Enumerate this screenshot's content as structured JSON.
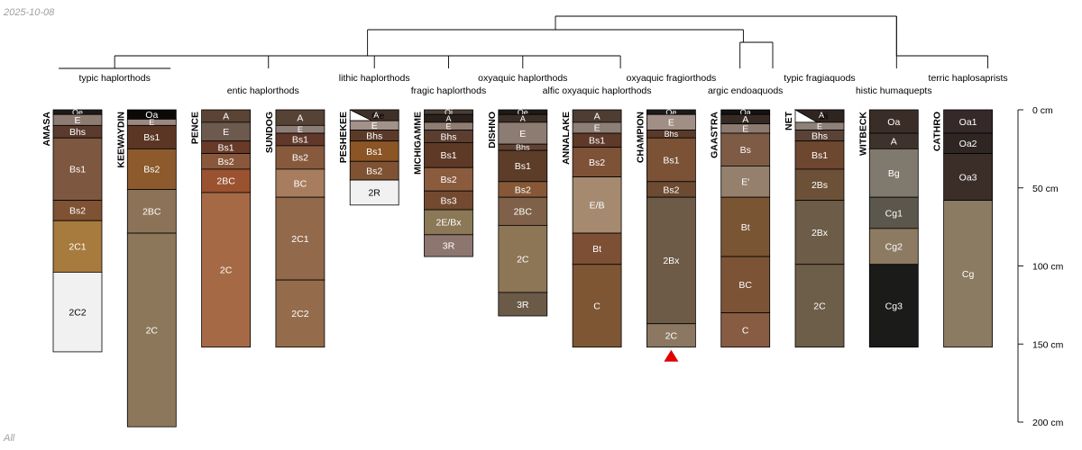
{
  "date": "2025-10-08",
  "footer": "All",
  "depth_axis": {
    "max": 200,
    "ticks": [
      {
        "value": 0,
        "label": "0 cm"
      },
      {
        "value": 50,
        "label": "50 cm"
      },
      {
        "value": 100,
        "label": "100 cm"
      },
      {
        "value": 150,
        "label": "150 cm"
      },
      {
        "value": 200,
        "label": "200 cm"
      }
    ]
  },
  "colors": {
    "line": "#000000",
    "marker": "#e00000"
  },
  "taxa": [
    {
      "name": "typic haplorthods",
      "members": [
        "AMASA",
        "KEEWAYDIN"
      ]
    },
    {
      "name": "entic haplorthods",
      "members": [
        "PENCE",
        "SUNDOG"
      ]
    },
    {
      "name": "lithic haplorthods",
      "members": [
        "PESHEKEE"
      ]
    },
    {
      "name": "fragic haplorthods",
      "members": [
        "MICHIGAMME"
      ]
    },
    {
      "name": "oxyaquic haplorthods",
      "members": [
        "DISHNO"
      ]
    },
    {
      "name": "alfic oxyaquic haplorthods",
      "members": [
        "ANNALAKE"
      ]
    },
    {
      "name": "oxyaquic fragiorthods",
      "members": [
        "CHAMPION"
      ]
    },
    {
      "name": "argic endoaquods",
      "members": [
        "GAASTRA"
      ]
    },
    {
      "name": "typic fragiaquods",
      "members": [
        "NET"
      ]
    },
    {
      "name": "histic humaquepts",
      "members": [
        "WITBECK"
      ]
    },
    {
      "name": "terric haplosaprists",
      "members": [
        "CATHRO"
      ]
    }
  ],
  "profiles": [
    {
      "name": "AMASA",
      "horizons": [
        {
          "name": "Oe",
          "top": 0,
          "bottom": 3,
          "color": "#1e1a18"
        },
        {
          "name": "E",
          "top": 3,
          "bottom": 10,
          "color": "#8e7b72"
        },
        {
          "name": "Bhs",
          "top": 10,
          "bottom": 18,
          "color": "#5a3b2d"
        },
        {
          "name": "Bs1",
          "top": 18,
          "bottom": 58,
          "color": "#7e5740"
        },
        {
          "name": "Bs2",
          "top": 58,
          "bottom": 71,
          "color": "#7e5233"
        },
        {
          "name": "2C1",
          "top": 71,
          "bottom": 104,
          "color": "#a77a3d"
        },
        {
          "name": "2C2",
          "top": 104,
          "bottom": 155,
          "color": "#f1f1f1"
        }
      ]
    },
    {
      "name": "KEEWAYDIN",
      "horizons": [
        {
          "name": "Oa",
          "top": 0,
          "bottom": 6,
          "color": "#0c0a08"
        },
        {
          "name": "E",
          "top": 6,
          "bottom": 10,
          "color": "#9c8880"
        },
        {
          "name": "Bs1",
          "top": 10,
          "bottom": 25,
          "color": "#5b3624"
        },
        {
          "name": "Bs2",
          "top": 25,
          "bottom": 51,
          "color": "#8c5a2c"
        },
        {
          "name": "2BC",
          "top": 51,
          "bottom": 79,
          "color": "#8c7358"
        },
        {
          "name": "2C",
          "top": 79,
          "bottom": 203,
          "color": "#8c775a"
        }
      ]
    },
    {
      "name": "PENCE",
      "horizons": [
        {
          "name": "A",
          "top": 0,
          "bottom": 8,
          "color": "#5b4335"
        },
        {
          "name": "E",
          "top": 8,
          "bottom": 20,
          "color": "#6d5a4e"
        },
        {
          "name": "Bs1",
          "top": 20,
          "bottom": 28,
          "color": "#683a27"
        },
        {
          "name": "Bs2",
          "top": 28,
          "bottom": 38,
          "color": "#88573c"
        },
        {
          "name": "2BC",
          "top": 38,
          "bottom": 53,
          "color": "#9a5230"
        },
        {
          "name": "2C",
          "top": 53,
          "bottom": 152,
          "color": "#a56a45"
        }
      ]
    },
    {
      "name": "SUNDOG",
      "horizons": [
        {
          "name": "A",
          "top": 0,
          "bottom": 10,
          "color": "#574236"
        },
        {
          "name": "E",
          "top": 10,
          "bottom": 15,
          "color": "#8c7e77"
        },
        {
          "name": "Bs1",
          "top": 15,
          "bottom": 23,
          "color": "#61392b"
        },
        {
          "name": "Bs2",
          "top": 23,
          "bottom": 38,
          "color": "#875a3e"
        },
        {
          "name": "BC",
          "top": 38,
          "bottom": 56,
          "color": "#a87d5f"
        },
        {
          "name": "2C1",
          "top": 56,
          "bottom": 109,
          "color": "#93694c"
        },
        {
          "name": "2C2",
          "top": 109,
          "bottom": 152,
          "color": "#946c4c"
        }
      ]
    },
    {
      "name": "PESHEKEE",
      "horizons": [
        {
          "name": "Oe",
          "top": 0,
          "bottom": 7,
          "color": "#ffffff",
          "pattern": "wedge"
        },
        {
          "name": "A",
          "top": 0,
          "bottom": 7,
          "color": "#3f3128",
          "label": false
        },
        {
          "name": "E",
          "top": 7,
          "bottom": 13,
          "color": "#a3928a"
        },
        {
          "name": "Bhs",
          "top": 13,
          "bottom": 20,
          "color": "#5c3a2a"
        },
        {
          "name": "Bs1",
          "top": 20,
          "bottom": 33,
          "color": "#8b5526"
        },
        {
          "name": "Bs2",
          "top": 33,
          "bottom": 45,
          "color": "#7e5233"
        },
        {
          "name": "2R",
          "top": 45,
          "bottom": 61,
          "color": "#f1f1f1"
        }
      ]
    },
    {
      "name": "MICHIGAMME",
      "horizons": [
        {
          "name": "Oi",
          "top": 0,
          "bottom": 3,
          "color": "#4a3e36"
        },
        {
          "name": "A",
          "top": 3,
          "bottom": 8,
          "color": "#2b211c"
        },
        {
          "name": "E",
          "top": 8,
          "bottom": 13,
          "color": "#8d7d73"
        },
        {
          "name": "Bhs",
          "top": 13,
          "bottom": 21,
          "color": "#5b3e30"
        },
        {
          "name": "Bs1",
          "top": 21,
          "bottom": 37,
          "color": "#5e3a26"
        },
        {
          "name": "Bs2",
          "top": 37,
          "bottom": 52,
          "color": "#8b5b3e"
        },
        {
          "name": "Bs3",
          "top": 52,
          "bottom": 64,
          "color": "#734a30"
        },
        {
          "name": "2E/Bx",
          "top": 64,
          "bottom": 80,
          "color": "#8a7856"
        },
        {
          "name": "3R",
          "top": 80,
          "bottom": 94,
          "color": "#8e7670"
        }
      ]
    },
    {
      "name": "DISHNO",
      "horizons": [
        {
          "name": "Oe",
          "top": 0,
          "bottom": 3,
          "color": "#1e1a18"
        },
        {
          "name": "A",
          "top": 3,
          "bottom": 8,
          "color": "#3b2e26"
        },
        {
          "name": "E",
          "top": 8,
          "bottom": 22,
          "color": "#8d7c72"
        },
        {
          "name": "Bhs",
          "top": 22,
          "bottom": 26,
          "color": "#604233"
        },
        {
          "name": "Bs1",
          "top": 26,
          "bottom": 46,
          "color": "#5d3d28"
        },
        {
          "name": "Bs2",
          "top": 46,
          "bottom": 56,
          "color": "#865837"
        },
        {
          "name": "2BC",
          "top": 56,
          "bottom": 74,
          "color": "#7e6148"
        },
        {
          "name": "2C",
          "top": 74,
          "bottom": 117,
          "color": "#8c7656"
        },
        {
          "name": "3R",
          "top": 117,
          "bottom": 132,
          "color": "#6b5a48"
        }
      ]
    },
    {
      "name": "ANNALAKE",
      "horizons": [
        {
          "name": "A",
          "top": 0,
          "bottom": 8,
          "color": "#4e3d33"
        },
        {
          "name": "E",
          "top": 8,
          "bottom": 15,
          "color": "#8d7e76"
        },
        {
          "name": "Bs1",
          "top": 15,
          "bottom": 24,
          "color": "#5f3a29"
        },
        {
          "name": "Bs2",
          "top": 24,
          "bottom": 43,
          "color": "#7e5237"
        },
        {
          "name": "E/B",
          "top": 43,
          "bottom": 79,
          "color": "#a58a70"
        },
        {
          "name": "Bt",
          "top": 79,
          "bottom": 99,
          "color": "#7d5035"
        },
        {
          "name": "C",
          "top": 99,
          "bottom": 152,
          "color": "#7e5634"
        }
      ]
    },
    {
      "name": "CHAMPION",
      "horizons": [
        {
          "name": "Oe",
          "top": 0,
          "bottom": 3,
          "color": "#1e1a18"
        },
        {
          "name": "E",
          "top": 3,
          "bottom": 13,
          "color": "#a18e84"
        },
        {
          "name": "Bhs",
          "top": 13,
          "bottom": 18,
          "color": "#5a3a2a"
        },
        {
          "name": "Bs1",
          "top": 18,
          "bottom": 46,
          "color": "#7b5236"
        },
        {
          "name": "Bs2",
          "top": 46,
          "bottom": 56,
          "color": "#6d4a32"
        },
        {
          "name": "2Bx",
          "top": 56,
          "bottom": 137,
          "color": "#6e5b47"
        },
        {
          "name": "2C",
          "top": 137,
          "bottom": 152,
          "color": "#8b7762"
        }
      ],
      "marker": true
    },
    {
      "name": "GAASTRA",
      "horizons": [
        {
          "name": "Oa",
          "top": 0,
          "bottom": 3,
          "color": "#151211"
        },
        {
          "name": "A",
          "top": 3,
          "bottom": 9,
          "color": "#362a24"
        },
        {
          "name": "E",
          "top": 9,
          "bottom": 15,
          "color": "#8c7a70"
        },
        {
          "name": "Bs",
          "top": 15,
          "bottom": 36,
          "color": "#7e5b45"
        },
        {
          "name": "E'",
          "top": 36,
          "bottom": 56,
          "color": "#94806c"
        },
        {
          "name": "Bt",
          "top": 56,
          "bottom": 94,
          "color": "#7a5534"
        },
        {
          "name": "BC",
          "top": 94,
          "bottom": 130,
          "color": "#7c5335"
        },
        {
          "name": "C",
          "top": 130,
          "bottom": 152,
          "color": "#885b43"
        }
      ]
    },
    {
      "name": "NET",
      "horizons": [
        {
          "name": "Oi",
          "top": 0,
          "bottom": 8,
          "color": "#ffffff",
          "pattern": "wedge"
        },
        {
          "name": "A",
          "top": 0,
          "bottom": 8,
          "color": "#2e2420",
          "label": false
        },
        {
          "name": "E",
          "top": 8,
          "bottom": 13,
          "color": "#8e8178"
        },
        {
          "name": "Bhs",
          "top": 13,
          "bottom": 20,
          "color": "#5a4236"
        },
        {
          "name": "Bs1",
          "top": 20,
          "bottom": 38,
          "color": "#6e4731"
        },
        {
          "name": "2Bs",
          "top": 38,
          "bottom": 58,
          "color": "#6c5138"
        },
        {
          "name": "2Bx",
          "top": 58,
          "bottom": 99,
          "color": "#6d5c47"
        },
        {
          "name": "2C",
          "top": 99,
          "bottom": 152,
          "color": "#6d5e49"
        }
      ]
    },
    {
      "name": "WITBECK",
      "horizons": [
        {
          "name": "Oa",
          "top": 0,
          "bottom": 15,
          "color": "#3a2d27"
        },
        {
          "name": "A",
          "top": 15,
          "bottom": 25,
          "color": "#3e322c"
        },
        {
          "name": "Bg",
          "top": 25,
          "bottom": 56,
          "color": "#807a6e"
        },
        {
          "name": "Cg1",
          "top": 56,
          "bottom": 76,
          "color": "#5c574d"
        },
        {
          "name": "Cg2",
          "top": 76,
          "bottom": 99,
          "color": "#8c7a62"
        },
        {
          "name": "Cg3",
          "top": 99,
          "bottom": 152,
          "color": "#1b1b1a"
        }
      ]
    },
    {
      "name": "CATHRO",
      "horizons": [
        {
          "name": "Oa1",
          "top": 0,
          "bottom": 15,
          "color": "#36292a"
        },
        {
          "name": "Oa2",
          "top": 15,
          "bottom": 28,
          "color": "#2f2624"
        },
        {
          "name": "Oa3",
          "top": 28,
          "bottom": 58,
          "color": "#3b2e28"
        },
        {
          "name": "Cg",
          "top": 58,
          "bottom": 152,
          "color": "#8a7b62"
        }
      ]
    }
  ]
}
